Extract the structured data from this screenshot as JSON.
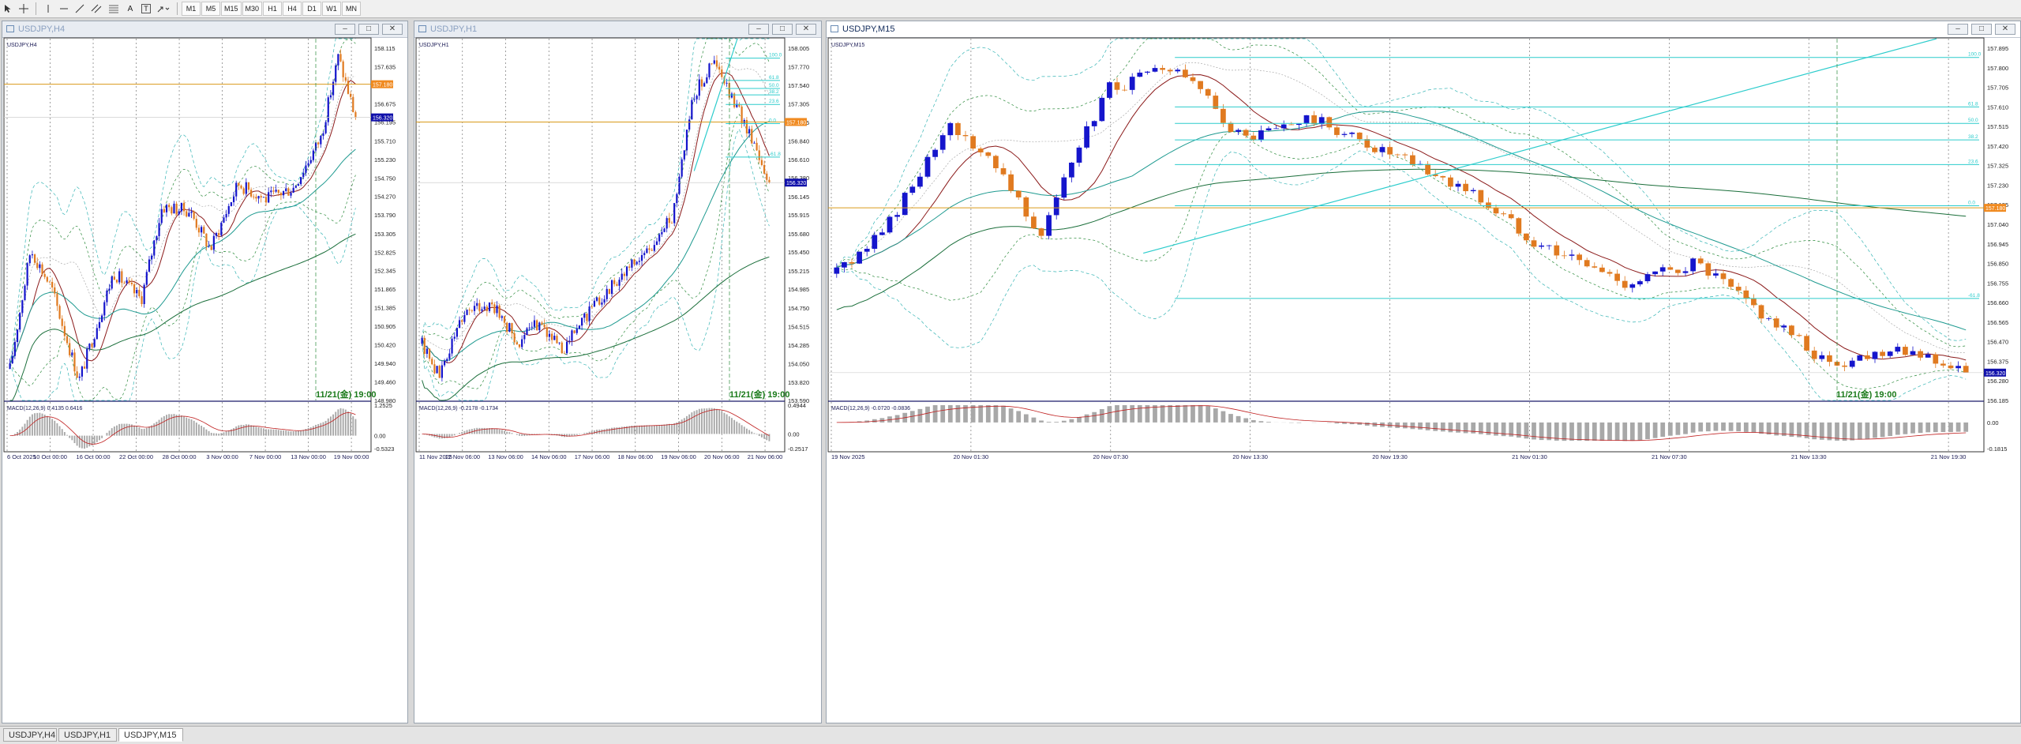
{
  "toolbar": {
    "tools": [
      "cursor-icon",
      "crosshair-icon",
      "vertical-line-icon",
      "horizontal-line-icon",
      "trendline-icon",
      "channel-icon",
      "fibonacci-icon",
      "text-icon",
      "label-icon",
      "arrow-icon"
    ],
    "text_tool_label": "A",
    "label_tool_label": "T",
    "timeframes": [
      "M1",
      "M5",
      "M15",
      "M30",
      "H1",
      "H4",
      "D1",
      "W1",
      "MN"
    ]
  },
  "colors": {
    "bull": "#1515cc",
    "bear": "#e07a20",
    "bb": "#2a8a3a",
    "bb_outer": "#35b4b4",
    "ma_fast": "#8b1a1a",
    "ma_mid": "#1e9a90",
    "ma_slow": "#1a6e3a",
    "hline": "#d99a1a",
    "fibo": "#2ccccc",
    "price_tag": "#1010aa",
    "alert_tag": "#f08a20",
    "macd_signal": "#c02020",
    "hist": "#a8a8a8"
  },
  "windows": [
    {
      "title": "USDJPY,H4",
      "label": "USDJPY,H4",
      "active": false,
      "price_scale": [
        "158.115",
        "157.635",
        "156.675",
        "156.195",
        "155.710",
        "155.230",
        "154.750",
        "154.270",
        "153.790",
        "153.305",
        "152.825",
        "152.345",
        "151.865",
        "151.385",
        "150.905",
        "150.420",
        "149.940",
        "149.460",
        "148.980"
      ],
      "price_min": 148.98,
      "price_max": 158.115,
      "current_price": "156.320",
      "alert_price": "157.180",
      "hline_price": 157.18,
      "time_labels": [
        "6 Oct 2025",
        "10 Oct 00:00",
        "16 Oct 00:00",
        "22 Oct 00:00",
        "28 Oct 00:00",
        "3 Nov 00:00",
        "7 Nov 00:00",
        "13 Nov 00:00",
        "19 Nov 00:00"
      ],
      "cursor_time": "11/21(金) 19:00",
      "macd_label": "MACD(12,26,9) 0.4135 0.6416",
      "macd_scale": [
        "1.2525",
        "0.00",
        "-0.5323"
      ],
      "macd_min": -0.5323,
      "macd_max": 1.2525,
      "start": 149.8,
      "end": 156.3,
      "peak": 157.9,
      "peak_frac": 0.95,
      "shape": [
        [
          0,
          149.8
        ],
        [
          0.06,
          152.9
        ],
        [
          0.12,
          151.9
        ],
        [
          0.2,
          149.5
        ],
        [
          0.3,
          152.3
        ],
        [
          0.38,
          151.6
        ],
        [
          0.44,
          154.0
        ],
        [
          0.52,
          153.9
        ],
        [
          0.58,
          152.9
        ],
        [
          0.66,
          154.6
        ],
        [
          0.74,
          154.2
        ],
        [
          0.82,
          154.5
        ],
        [
          0.9,
          155.8
        ],
        [
          0.95,
          157.9
        ],
        [
          1.0,
          156.3
        ]
      ],
      "fibo": null
    },
    {
      "title": "USDJPY,H1",
      "label": "USDJPY,H1",
      "active": false,
      "price_scale": [
        "158.005",
        "157.770",
        "157.540",
        "157.305",
        "157.075",
        "156.840",
        "156.610",
        "156.380",
        "156.145",
        "155.915",
        "155.680",
        "155.450",
        "155.215",
        "154.985",
        "154.750",
        "154.515",
        "154.285",
        "154.050",
        "153.820",
        "153.590"
      ],
      "price_min": 153.59,
      "price_max": 158.005,
      "current_price": "156.320",
      "alert_price": "157.180",
      "hline_price": 157.08,
      "time_labels": [
        "11 Nov 2025",
        "12 Nov 06:00",
        "13 Nov 06:00",
        "14 Nov 06:00",
        "17 Nov 06:00",
        "18 Nov 06:00",
        "19 Nov 06:00",
        "20 Nov 06:00",
        "21 Nov 06:00"
      ],
      "cursor_time": "11/21(金) 19:00",
      "macd_label": "MACD(12,26,9) -0.2178 -0.1734",
      "macd_scale": [
        "0.4944",
        "0.00",
        "-0.2517"
      ],
      "macd_min": -0.2517,
      "macd_max": 0.4944,
      "shape": [
        [
          0,
          154.3
        ],
        [
          0.05,
          153.9
        ],
        [
          0.12,
          154.7
        ],
        [
          0.2,
          154.8
        ],
        [
          0.28,
          154.3
        ],
        [
          0.34,
          154.6
        ],
        [
          0.4,
          154.2
        ],
        [
          0.48,
          154.7
        ],
        [
          0.56,
          155.1
        ],
        [
          0.66,
          155.5
        ],
        [
          0.72,
          155.9
        ],
        [
          0.78,
          157.4
        ],
        [
          0.84,
          157.85
        ],
        [
          0.9,
          157.3
        ],
        [
          0.96,
          156.8
        ],
        [
          1.0,
          156.32
        ]
      ],
      "fibo": {
        "labels": [
          "100.0",
          "61.8",
          "50.0",
          "38.2",
          "23.6",
          "0.0",
          "-61.8"
        ],
        "levels": [
          157.88,
          157.6,
          157.5,
          157.42,
          157.3,
          157.06,
          156.64
        ],
        "x0": 0.84,
        "x1": 1.0
      }
    },
    {
      "title": "USDJPY,M15",
      "label": "USDJPY,M15",
      "active": true,
      "price_scale": [
        "157.895",
        "157.800",
        "157.705",
        "157.610",
        "157.515",
        "157.420",
        "157.325",
        "157.230",
        "157.135",
        "157.040",
        "156.945",
        "156.850",
        "156.755",
        "156.660",
        "156.565",
        "156.470",
        "156.375",
        "156.280",
        "156.185"
      ],
      "price_min": 156.185,
      "price_max": 157.895,
      "current_price": "156.320",
      "alert_price": "157.180",
      "hline_price": 157.12,
      "time_labels": [
        "19 Nov 2025",
        "20 Nov 01:30",
        "20 Nov 07:30",
        "20 Nov 13:30",
        "20 Nov 19:30",
        "21 Nov 01:30",
        "21 Nov 07:30",
        "21 Nov 13:30",
        "21 Nov 19:30"
      ],
      "cursor_time": "11/21(金) 19:00",
      "macd_label": "MACD(12,26,9) -0.0720 -0.0836",
      "macd_scale": [
        "0.00",
        "-0.1815"
      ],
      "macd_min": -0.1815,
      "macd_max": 0.12,
      "shape": [
        [
          0,
          156.8
        ],
        [
          0.04,
          157.0
        ],
        [
          0.1,
          157.5
        ],
        [
          0.14,
          157.35
        ],
        [
          0.18,
          157.0
        ],
        [
          0.24,
          157.7
        ],
        [
          0.3,
          157.8
        ],
        [
          0.36,
          157.45
        ],
        [
          0.42,
          157.55
        ],
        [
          0.5,
          157.35
        ],
        [
          0.56,
          157.2
        ],
        [
          0.62,
          156.95
        ],
        [
          0.7,
          156.75
        ],
        [
          0.76,
          156.85
        ],
        [
          0.82,
          156.6
        ],
        [
          0.88,
          156.35
        ],
        [
          0.94,
          156.45
        ],
        [
          1.0,
          156.32
        ]
      ],
      "fibo": {
        "labels": [
          "100.0",
          "61.8",
          "50.0",
          "38.2",
          "23.6",
          "0.0",
          "-61.8"
        ],
        "levels": [
          157.85,
          157.61,
          157.53,
          157.45,
          157.33,
          157.13,
          156.68
        ],
        "x0": 0.3,
        "x1": 1.0
      }
    }
  ],
  "tabs": [
    "USDJPY,H4",
    "USDJPY,H1",
    "USDJPY,M15"
  ],
  "active_tab": "USDJPY,M15"
}
